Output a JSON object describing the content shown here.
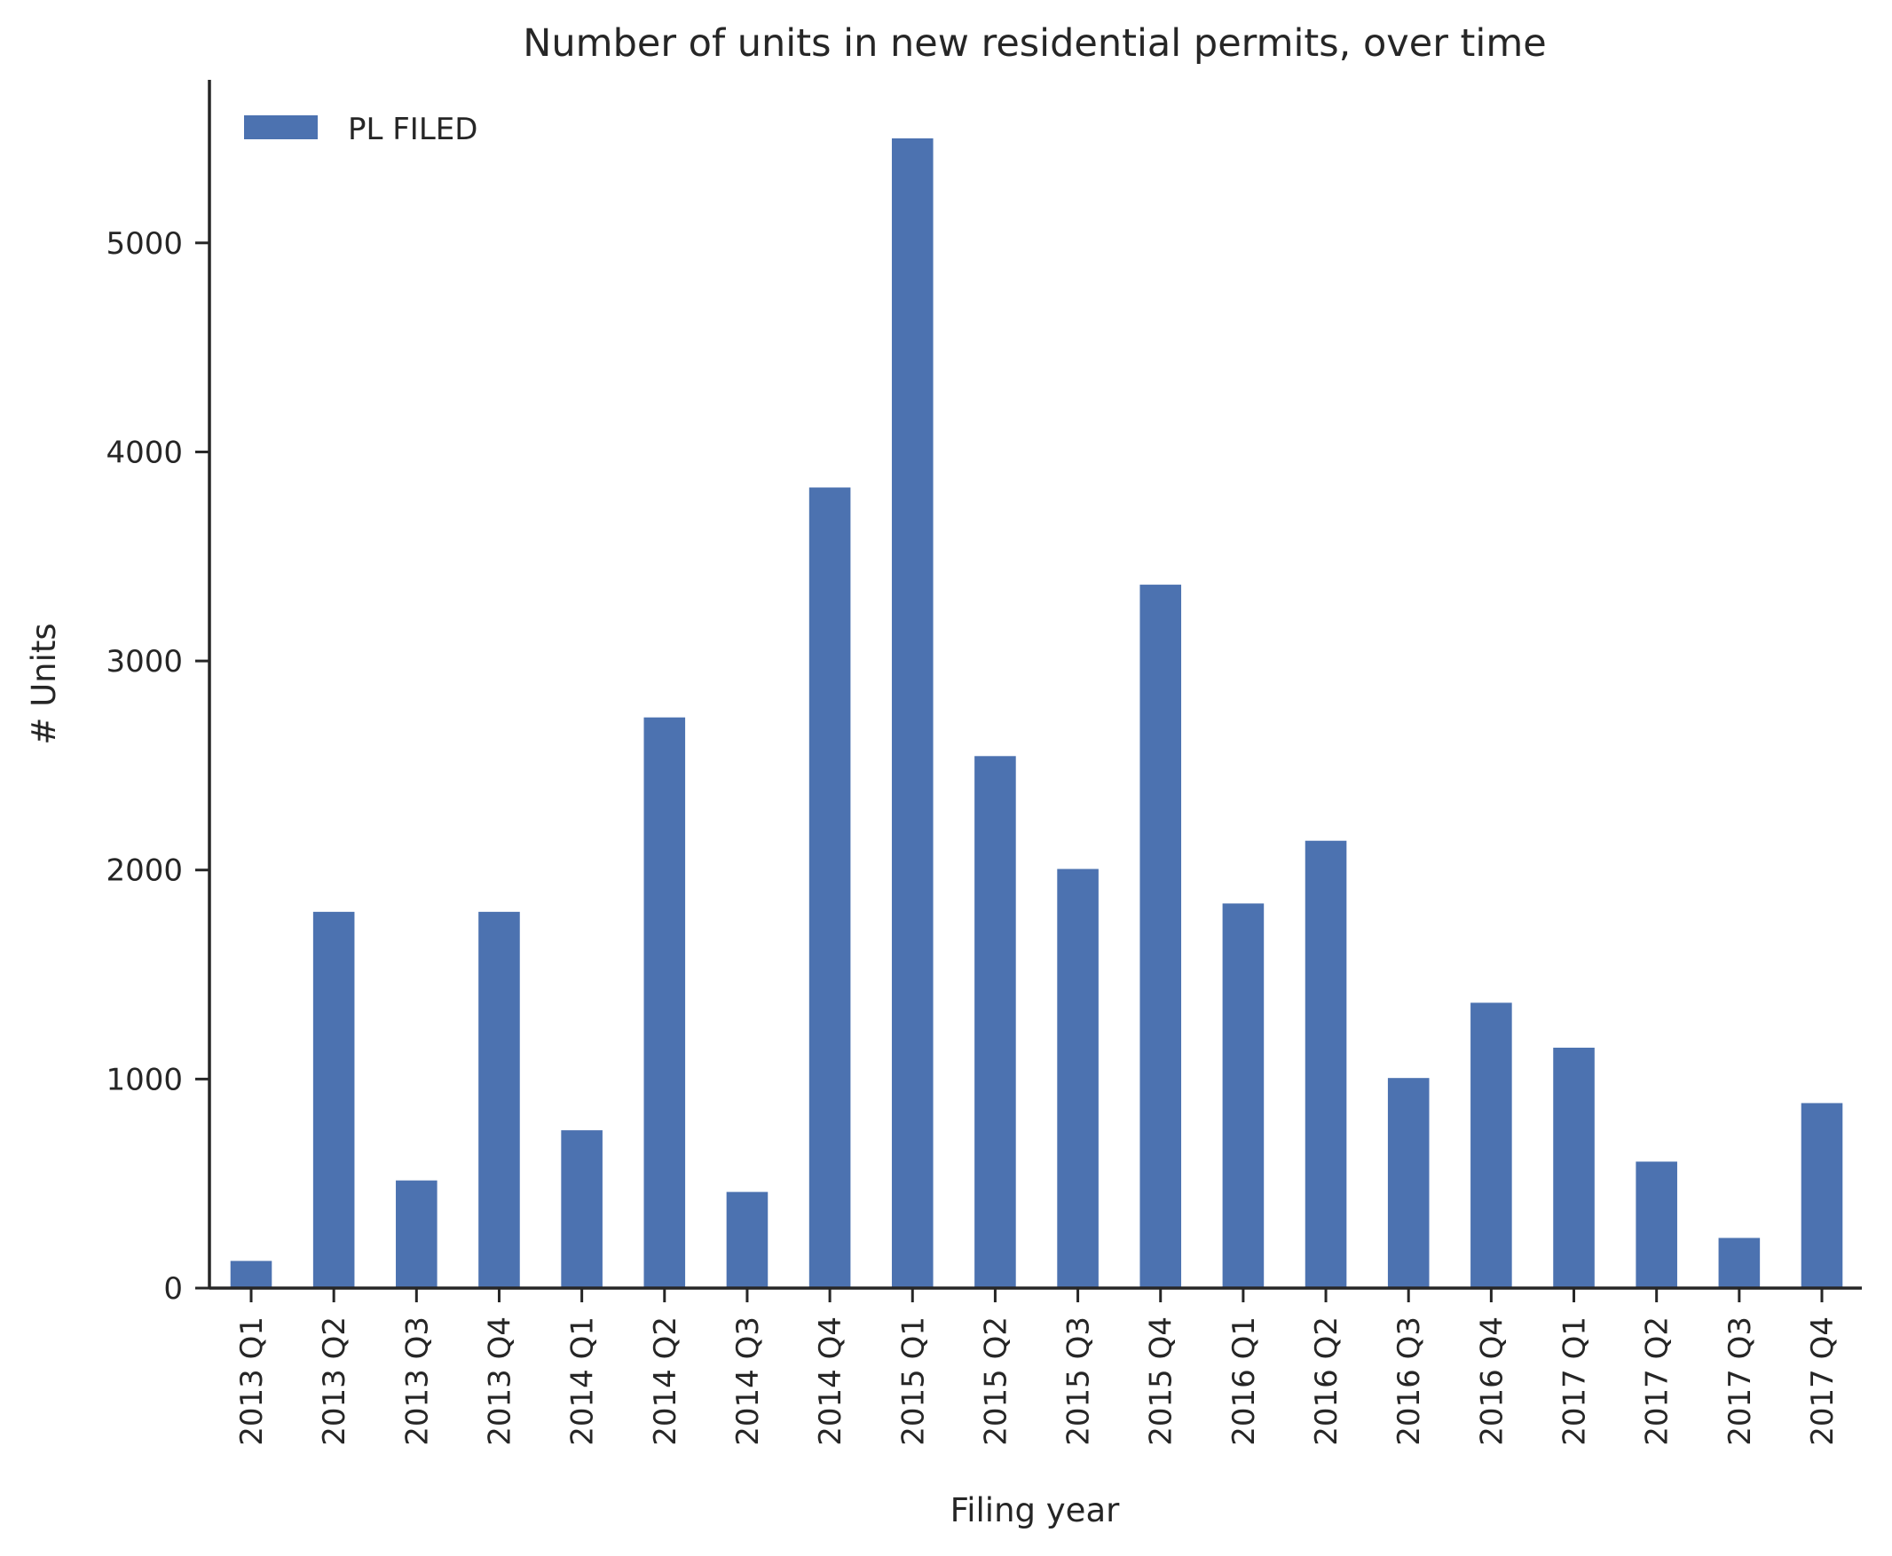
{
  "chart_data": {
    "type": "bar",
    "title": "Number of units in new residential permits, over time",
    "xlabel": "Filing year",
    "ylabel": "# Units",
    "categories": [
      "2013 Q1",
      "2013 Q2",
      "2013 Q3",
      "2013 Q4",
      "2014 Q1",
      "2014 Q2",
      "2014 Q3",
      "2014 Q4",
      "2015 Q1",
      "2015 Q2",
      "2015 Q3",
      "2015 Q4",
      "2016 Q1",
      "2016 Q2",
      "2016 Q3",
      "2016 Q4",
      "2017 Q1",
      "2017 Q2",
      "2017 Q3",
      "2017 Q4"
    ],
    "series": [
      {
        "name": "PL FILED",
        "color": "#4c72b0",
        "values": [
          130,
          1800,
          515,
          1800,
          755,
          2730,
          460,
          3830,
          5500,
          2545,
          2005,
          3365,
          1840,
          2140,
          1005,
          1365,
          1150,
          605,
          240,
          885
        ]
      }
    ],
    "ylim": [
      0,
      5780
    ],
    "yticks": [
      0,
      1000,
      2000,
      3000,
      4000,
      5000
    ],
    "ytick_labels": [
      "0",
      "1000",
      "2000",
      "3000",
      "4000",
      "5000"
    ],
    "grid": false,
    "legend_position": "top-left"
  }
}
